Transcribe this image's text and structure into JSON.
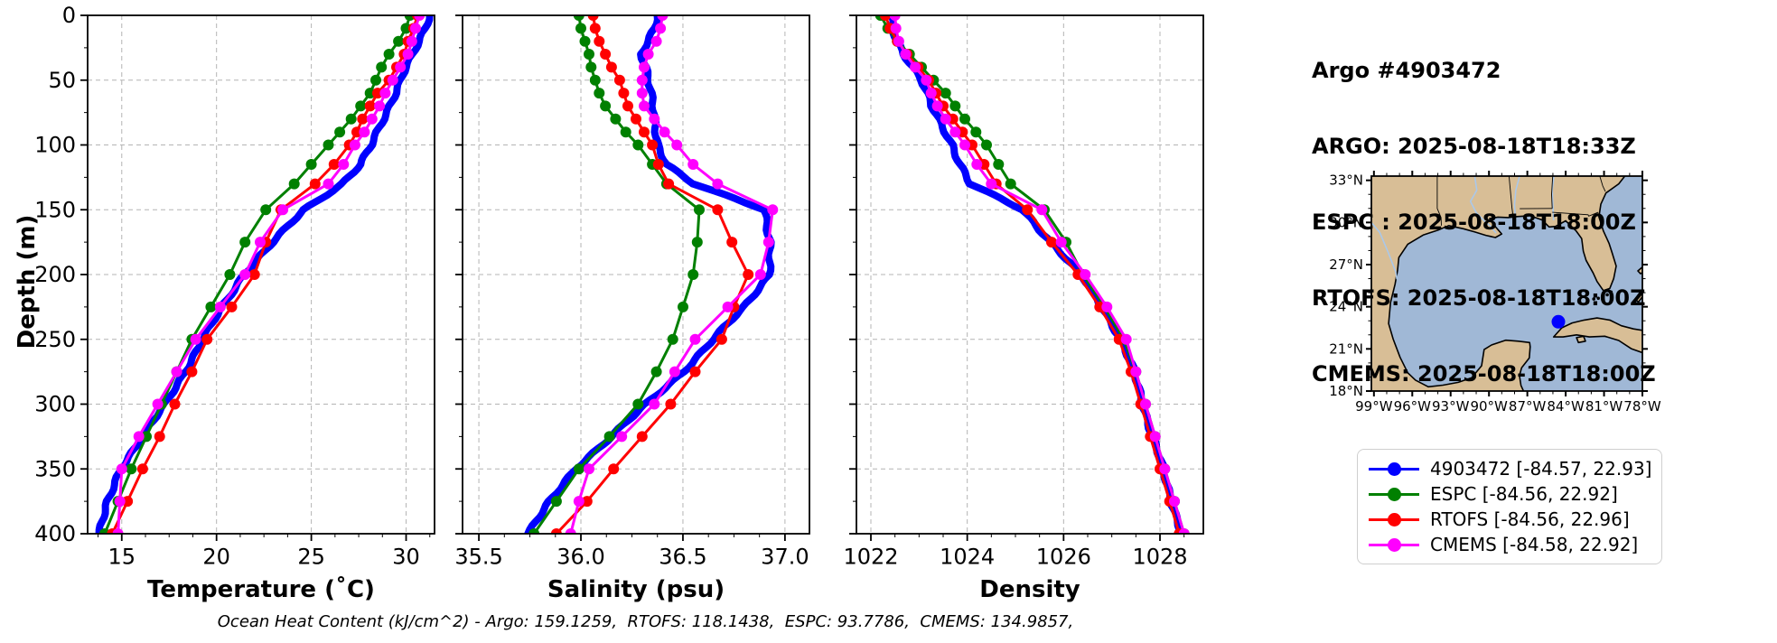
{
  "header": {
    "lines": [
      "Argo #4903472",
      "ARGO: 2025-08-18T18:33Z",
      "ESPC : 2025-08-18T18:00Z",
      "RTOFS: 2025-08-18T18:00Z",
      "CMEMS: 2025-08-18T18:00Z"
    ]
  },
  "footer": {
    "text": "Ocean Heat Content (kJ/cm^2) - Argo: 159.1259,  RTOFS: 118.1438,  ESPC: 93.7786,  CMEMS: 134.9857,"
  },
  "colors": {
    "argo": "#0000ff",
    "espc": "#008000",
    "rtofs": "#ff0000",
    "cmems": "#ff00ff",
    "grid": "#b4b4b4",
    "land": "#d8be96",
    "ocean": "#a0b8d6",
    "river": "#aac8ea"
  },
  "legend": {
    "items": [
      {
        "label": "4903472 [-84.57, 22.93]",
        "color": "#0000ff"
      },
      {
        "label": "ESPC [-84.56, 22.92]",
        "color": "#008000"
      },
      {
        "label": "RTOFS [-84.56, 22.96]",
        "color": "#ff0000"
      },
      {
        "label": "CMEMS [-84.58, 22.92]",
        "color": "#ff00ff"
      }
    ]
  },
  "map": {
    "lon_tick_values": [
      -99,
      -96,
      -93,
      -90,
      -87,
      -84,
      -81,
      -78
    ],
    "lon_tick_labels": [
      "99°W",
      "96°W",
      "93°W",
      "90°W",
      "87°W",
      "84°W",
      "81°W",
      "78°W"
    ],
    "lat_tick_values": [
      33,
      30,
      27,
      24,
      21,
      18
    ],
    "lat_tick_labels": [
      "33°N",
      "30°N",
      "27°N",
      "24°N",
      "21°N",
      "18°N"
    ],
    "lon_range": [
      -99.2,
      -78.0
    ],
    "lat_range": [
      18.0,
      33.3
    ],
    "float_marker": {
      "lon": -84.57,
      "lat": 22.93,
      "color": "#0000ff"
    }
  },
  "chart_data": [
    {
      "type": "line",
      "xlabel": "Temperature (˚C)",
      "ylabel": "Depth (m)",
      "xlim": [
        13.2,
        31.5
      ],
      "ylim": [
        400,
        0
      ],
      "grid": true,
      "xticks": [
        15,
        20,
        25,
        30
      ],
      "xtick_labels": [
        "15",
        "20",
        "25",
        "30"
      ],
      "yticks": [
        0,
        50,
        100,
        150,
        200,
        250,
        300,
        350,
        400
      ],
      "ytick_labels": [
        "0",
        "50",
        "100",
        "150",
        "200",
        "250",
        "300",
        "350",
        "400"
      ],
      "depths": [
        0,
        10,
        20,
        30,
        40,
        50,
        60,
        70,
        80,
        90,
        100,
        115,
        130,
        150,
        175,
        200,
        225,
        250,
        275,
        300,
        325,
        350,
        375,
        400
      ],
      "series": [
        {
          "name": "4903472",
          "color_key": "argo",
          "style": "thick",
          "values": [
            31.2,
            31.0,
            30.7,
            30.4,
            30.0,
            29.7,
            29.4,
            29.1,
            28.8,
            28.5,
            28.2,
            27.6,
            26.6,
            24.6,
            23.0,
            21.4,
            20.3,
            19.3,
            18.3,
            17.3,
            16.1,
            14.9,
            14.3,
            13.8
          ]
        },
        {
          "name": "ESPC",
          "color_key": "espc",
          "style": "marker",
          "values": [
            30.2,
            30.0,
            29.6,
            29.1,
            28.7,
            28.4,
            28.1,
            27.6,
            27.1,
            26.5,
            25.9,
            25.0,
            24.1,
            22.6,
            21.5,
            20.7,
            19.7,
            18.7,
            17.9,
            17.1,
            16.3,
            15.5,
            14.8,
            14.1
          ]
        },
        {
          "name": "RTOFS",
          "color_key": "rtofs",
          "style": "marker",
          "values": [
            30.6,
            30.4,
            30.1,
            29.9,
            29.5,
            29.1,
            28.5,
            28.1,
            27.7,
            27.4,
            27.0,
            26.2,
            25.2,
            23.4,
            22.6,
            22.0,
            20.8,
            19.5,
            18.7,
            17.8,
            17.0,
            16.1,
            15.3,
            14.5
          ]
        },
        {
          "name": "CMEMS",
          "color_key": "cmems",
          "style": "marker",
          "values": [
            30.7,
            30.5,
            30.3,
            30.1,
            29.7,
            29.3,
            28.9,
            28.6,
            28.2,
            27.8,
            27.3,
            26.7,
            25.9,
            23.5,
            22.3,
            21.5,
            20.2,
            18.9,
            17.9,
            16.9,
            15.9,
            15.0,
            14.9,
            14.8
          ]
        }
      ]
    },
    {
      "type": "line",
      "xlabel": "Salinity (psu)",
      "ylabel": "Depth (m)",
      "xlim": [
        35.42,
        37.12
      ],
      "ylim": [
        400,
        0
      ],
      "grid": true,
      "xticks": [
        35.5,
        36.0,
        36.5,
        37.0
      ],
      "xtick_labels": [
        "35.5",
        "36.0",
        "36.5",
        "37.0"
      ],
      "yticks": [
        0,
        50,
        100,
        150,
        200,
        250,
        300,
        350,
        400
      ],
      "ytick_labels": [],
      "depths": [
        0,
        10,
        20,
        30,
        40,
        50,
        60,
        70,
        80,
        90,
        100,
        115,
        130,
        150,
        175,
        200,
        225,
        250,
        275,
        300,
        325,
        350,
        375,
        400
      ],
      "series": [
        {
          "name": "4903472",
          "color_key": "argo",
          "style": "thick",
          "values": [
            36.37,
            36.36,
            36.33,
            36.3,
            36.32,
            36.33,
            36.34,
            36.35,
            36.36,
            36.37,
            36.38,
            36.42,
            36.55,
            36.9,
            36.93,
            36.92,
            36.8,
            36.65,
            36.5,
            36.32,
            36.15,
            35.97,
            35.85,
            35.74
          ]
        },
        {
          "name": "ESPC",
          "color_key": "espc",
          "style": "marker",
          "values": [
            35.99,
            36.0,
            36.02,
            36.04,
            36.05,
            36.07,
            36.09,
            36.12,
            36.17,
            36.22,
            36.28,
            36.35,
            36.42,
            36.58,
            36.57,
            36.55,
            36.5,
            36.45,
            36.37,
            36.28,
            36.14,
            35.99,
            35.88,
            35.77
          ]
        },
        {
          "name": "RTOFS",
          "color_key": "rtofs",
          "style": "marker",
          "values": [
            36.06,
            36.07,
            36.09,
            36.12,
            36.15,
            36.19,
            36.21,
            36.23,
            36.27,
            36.31,
            36.35,
            36.38,
            36.43,
            36.67,
            36.74,
            36.82,
            36.75,
            36.69,
            36.56,
            36.44,
            36.3,
            36.16,
            36.03,
            35.88
          ]
        },
        {
          "name": "CMEMS",
          "color_key": "cmems",
          "style": "marker",
          "values": [
            36.4,
            36.39,
            36.37,
            36.33,
            36.31,
            36.3,
            36.3,
            36.31,
            36.36,
            36.41,
            36.47,
            36.55,
            36.67,
            36.94,
            36.92,
            36.88,
            36.72,
            36.56,
            36.46,
            36.36,
            36.2,
            36.04,
            35.99,
            35.95
          ]
        }
      ]
    },
    {
      "type": "line",
      "xlabel": "Density",
      "ylabel": "Depth (m)",
      "xlim": [
        1021.7,
        1028.9
      ],
      "ylim": [
        400,
        0
      ],
      "grid": true,
      "xticks": [
        1022,
        1024,
        1026,
        1028
      ],
      "xtick_labels": [
        "1022",
        "1024",
        "1026",
        "1028"
      ],
      "yticks": [
        0,
        50,
        100,
        150,
        200,
        250,
        300,
        350,
        400
      ],
      "ytick_labels": [],
      "depths": [
        0,
        10,
        20,
        30,
        40,
        50,
        60,
        70,
        80,
        90,
        100,
        115,
        130,
        150,
        175,
        200,
        225,
        250,
        275,
        300,
        325,
        350,
        375,
        400
      ],
      "series": [
        {
          "name": "4903472",
          "color_key": "argo",
          "style": "thick",
          "values": [
            1022.4,
            1022.45,
            1022.55,
            1022.7,
            1022.88,
            1023.05,
            1023.15,
            1023.25,
            1023.4,
            1023.55,
            1023.7,
            1023.85,
            1024.05,
            1025.15,
            1025.75,
            1026.35,
            1026.8,
            1027.2,
            1027.45,
            1027.65,
            1027.85,
            1028.05,
            1028.25,
            1028.45
          ]
        },
        {
          "name": "ESPC",
          "color_key": "espc",
          "style": "marker",
          "values": [
            1022.2,
            1022.35,
            1022.55,
            1022.8,
            1023.05,
            1023.3,
            1023.55,
            1023.75,
            1023.95,
            1024.18,
            1024.4,
            1024.65,
            1024.9,
            1025.6,
            1026.05,
            1026.4,
            1026.85,
            1027.25,
            1027.5,
            1027.7,
            1027.9,
            1028.1,
            1028.3,
            1028.5
          ]
        },
        {
          "name": "RTOFS",
          "color_key": "rtofs",
          "style": "marker",
          "values": [
            1022.3,
            1022.4,
            1022.55,
            1022.75,
            1022.98,
            1023.2,
            1023.35,
            1023.5,
            1023.7,
            1023.9,
            1024.1,
            1024.35,
            1024.6,
            1025.25,
            1025.75,
            1026.3,
            1026.75,
            1027.15,
            1027.4,
            1027.6,
            1027.8,
            1028.0,
            1028.2,
            1028.4
          ]
        },
        {
          "name": "CMEMS",
          "color_key": "cmems",
          "style": "marker",
          "values": [
            1022.5,
            1022.52,
            1022.58,
            1022.72,
            1022.92,
            1023.15,
            1023.25,
            1023.38,
            1023.55,
            1023.75,
            1023.95,
            1024.2,
            1024.5,
            1025.55,
            1025.95,
            1026.45,
            1026.9,
            1027.3,
            1027.5,
            1027.7,
            1027.9,
            1028.1,
            1028.3,
            1028.5
          ]
        }
      ]
    }
  ]
}
